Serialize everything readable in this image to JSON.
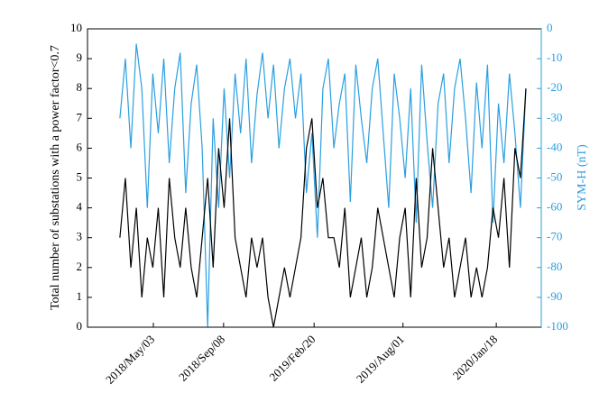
{
  "chart_data": {
    "type": "line",
    "ylabel": "Total number of substations with a power factor<0.7",
    "y2label": "SYM-H (nT)",
    "x": [
      "2018-03-03",
      "2018-03-13",
      "2018-03-23",
      "2018-04-02",
      "2018-04-12",
      "2018-04-22",
      "2018-05-02",
      "2018-05-12",
      "2018-05-22",
      "2018-06-01",
      "2018-06-11",
      "2018-06-21",
      "2018-07-01",
      "2018-07-11",
      "2018-07-21",
      "2018-07-31",
      "2018-08-10",
      "2018-08-20",
      "2018-08-30",
      "2018-09-09",
      "2018-09-19",
      "2018-09-29",
      "2018-10-09",
      "2018-10-19",
      "2018-10-29",
      "2018-11-08",
      "2018-11-18",
      "2018-11-28",
      "2018-12-08",
      "2018-12-18",
      "2018-12-28",
      "2019-01-07",
      "2019-01-17",
      "2019-01-27",
      "2019-02-06",
      "2019-02-16",
      "2019-02-26",
      "2019-03-08",
      "2019-03-18",
      "2019-03-28",
      "2019-04-07",
      "2019-04-17",
      "2019-04-27",
      "2019-05-07",
      "2019-05-17",
      "2019-05-27",
      "2019-06-06",
      "2019-06-16",
      "2019-06-26",
      "2019-07-06",
      "2019-07-16",
      "2019-07-26",
      "2019-08-05",
      "2019-08-15",
      "2019-08-25",
      "2019-09-04",
      "2019-09-14",
      "2019-09-24",
      "2019-10-04",
      "2019-10-14",
      "2019-10-24",
      "2019-11-03",
      "2019-11-13",
      "2019-11-23",
      "2019-12-03",
      "2019-12-13",
      "2019-12-23",
      "2020-01-02",
      "2020-01-12",
      "2020-01-22",
      "2020-02-01",
      "2020-02-11",
      "2020-02-21",
      "2020-03-02",
      "2020-03-12"
    ],
    "series": [
      {
        "color": "#2a9fe0",
        "axis": "y2",
        "values": [
          -30,
          -10,
          -40,
          -5,
          -20,
          -60,
          -15,
          -35,
          -10,
          -45,
          -20,
          -8,
          -55,
          -25,
          -12,
          -40,
          -100,
          -30,
          -60,
          -20,
          -50,
          -15,
          -35,
          -10,
          -45,
          -22,
          -8,
          -30,
          -12,
          -40,
          -20,
          -10,
          -30,
          -15,
          -55,
          -35,
          -70,
          -20,
          -10,
          -40,
          -25,
          -15,
          -58,
          -12,
          -30,
          -45,
          -20,
          -10,
          -35,
          -60,
          -15,
          -30,
          -50,
          -20,
          -65,
          -12,
          -38,
          -60,
          -25,
          -15,
          -45,
          -20,
          -10,
          -30,
          -55,
          -18,
          -40,
          -12,
          -65,
          -25,
          -45,
          -15,
          -35,
          -60,
          -20
        ]
      },
      {
        "color": "#000000",
        "values": [
          3,
          5,
          2,
          4,
          1,
          3,
          2,
          4,
          1,
          5,
          3,
          2,
          4,
          2,
          1,
          3,
          5,
          2,
          6,
          4,
          7,
          3,
          2,
          1,
          3,
          2,
          3,
          1,
          0,
          1,
          2,
          1,
          2,
          3,
          6,
          7,
          4,
          5,
          3,
          3,
          2,
          4,
          1,
          2,
          3,
          1,
          2,
          4,
          3,
          2,
          1,
          3,
          4,
          1,
          5,
          2,
          3,
          6,
          4,
          2,
          3,
          1,
          2,
          3,
          1,
          2,
          1,
          2,
          4,
          3,
          5,
          2,
          6,
          5,
          8
        ]
      }
    ],
    "xlim": [
      "2018-01-03",
      "2020-04-09"
    ],
    "xticks": [
      {
        "value": "2018-05-03",
        "label": "2018/May/03"
      },
      {
        "value": "2018-09-08",
        "label": "2018/Sep/08"
      },
      {
        "value": "2019-02-20",
        "label": "2019/Feb/20"
      },
      {
        "value": "2019-08-01",
        "label": "2019/Aug/01"
      },
      {
        "value": "2020-01-18",
        "label": "2020/Jan/18"
      }
    ],
    "ylim": [
      0,
      10
    ],
    "yticks": [
      0,
      1,
      2,
      3,
      4,
      5,
      6,
      7,
      8,
      9,
      10
    ],
    "y2lim": [
      -100,
      0
    ],
    "y2ticks": [
      0,
      -10,
      -20,
      -30,
      -40,
      -50,
      -60,
      -70,
      -80,
      -90,
      -100
    ],
    "y2color": "#2a9fe0"
  }
}
